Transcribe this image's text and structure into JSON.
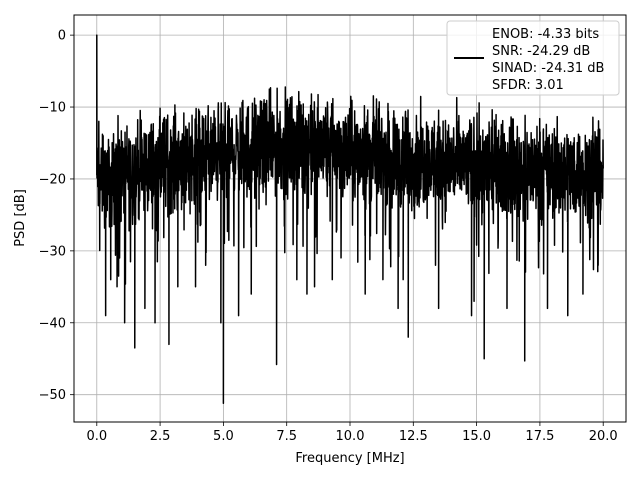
{
  "chart_data": {
    "type": "line",
    "xlabel": "Frequency [MHz]",
    "ylabel": "PSD [dB]",
    "xlim": [
      -0.9,
      20.9
    ],
    "ylim": [
      -53.8,
      2.8
    ],
    "x_ticks": [
      0.0,
      2.5,
      5.0,
      7.5,
      10.0,
      12.5,
      15.0,
      17.5,
      20.0
    ],
    "x_tick_labels": [
      "0.0",
      "2.5",
      "5.0",
      "7.5",
      "10.0",
      "12.5",
      "15.0",
      "17.5",
      "20.0"
    ],
    "y_ticks": [
      0,
      -10,
      -20,
      -30,
      -40,
      -50
    ],
    "y_tick_labels": [
      "0",
      "−10",
      "−20",
      "−30",
      "−40",
      "−50"
    ],
    "grid": true,
    "legend_placement": "upper right",
    "legend_lines": [
      "ENOB: -4.33 bits",
      "SNR: -24.29 dB",
      "SINAD: -24.31 dB",
      "SFDR: 3.01"
    ],
    "series": [
      {
        "color": "#000000",
        "x_range": [
          0,
          20
        ],
        "envelope_x": [
          0,
          0.5,
          1,
          2,
          3,
          4,
          5,
          6,
          7,
          8,
          9,
          10,
          11,
          12,
          13,
          14,
          15,
          16,
          17,
          18,
          19,
          20
        ],
        "envelope_top": [
          -12,
          -12,
          -10,
          -9,
          -8,
          -7.5,
          -7,
          -6.5,
          -6,
          -5.5,
          -6,
          -7,
          -7,
          -8,
          -8,
          -8.5,
          -9,
          -9,
          -9.5,
          -10,
          -10,
          -10
        ],
        "envelope_bottom": [
          -28,
          -29,
          -29,
          -28,
          -27,
          -26,
          -26,
          -25.5,
          -25,
          -25,
          -25.5,
          -26,
          -26,
          -27,
          -27,
          -27.5,
          -27.5,
          -28,
          -28,
          -28,
          -28,
          -28
        ],
        "peaks": [
          [
            0.0,
            0.0
          ],
          [
            0.08,
            -12
          ],
          [
            0.12,
            -22
          ],
          [
            0.25,
            -14
          ],
          [
            0.35,
            -39
          ],
          [
            0.55,
            -34
          ],
          [
            0.8,
            -35
          ],
          [
            0.9,
            -31
          ],
          [
            1.1,
            -40
          ],
          [
            1.5,
            -43.5
          ],
          [
            1.9,
            -38
          ],
          [
            2.3,
            -40
          ],
          [
            2.85,
            -43
          ],
          [
            3.2,
            -35
          ],
          [
            3.9,
            -35
          ],
          [
            4.3,
            -32
          ],
          [
            4.9,
            -40
          ],
          [
            5.0,
            -51.2
          ],
          [
            5.6,
            -39
          ],
          [
            6.1,
            -36
          ],
          [
            7.1,
            -45.8
          ],
          [
            7.9,
            -34
          ],
          [
            8.3,
            -36
          ],
          [
            8.6,
            -35
          ],
          [
            9.3,
            -34
          ],
          [
            10.6,
            -36
          ],
          [
            11.3,
            -34
          ],
          [
            11.9,
            -38
          ],
          [
            12.1,
            -34
          ],
          [
            12.3,
            -42
          ],
          [
            13.5,
            -38
          ],
          [
            14.9,
            -37
          ],
          [
            14.8,
            -39
          ],
          [
            15.3,
            -45
          ],
          [
            16.2,
            -38
          ],
          [
            16.9,
            -45.3
          ],
          [
            17.8,
            -38
          ],
          [
            18.6,
            -39
          ],
          [
            19.2,
            -36
          ],
          [
            19.8,
            -32
          ]
        ],
        "noise_std_db": 4.5
      }
    ]
  }
}
